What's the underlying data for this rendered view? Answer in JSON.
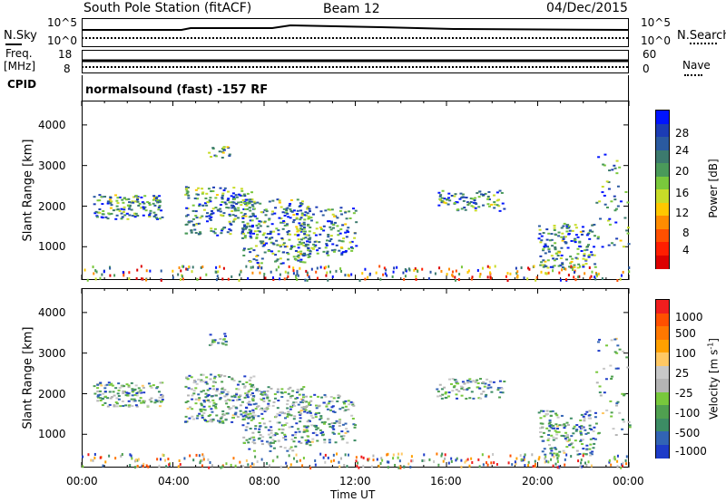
{
  "header": {
    "station": "South Pole Station (fitACF)",
    "beam": "Beam 12",
    "date": "04/Dec/2015"
  },
  "top_panels": {
    "nsky_label": "N.Sky",
    "nsky_left_ticks": [
      "10^5",
      "10^0"
    ],
    "nsky_right_ticks": [
      "10^5",
      "10^0"
    ],
    "nsearch_label": "N.Search",
    "freq_label_1": "Freq.",
    "freq_label_2": "[MHz]",
    "freq_left_ticks": [
      "18",
      "8"
    ],
    "freq_right_ticks": [
      "60",
      "0"
    ],
    "nave_label": "Nave",
    "cpid_label": "CPID",
    "cpid_text": "normalsound (fast) -157 RF"
  },
  "chart_data": [
    {
      "type": "heatmap",
      "panel": "power",
      "ylabel": "Slant Range [km]",
      "y_ticks": [
        1000,
        2000,
        3000,
        4000
      ],
      "ylim": [
        180,
        4600
      ],
      "xlim": [
        0,
        24
      ],
      "colorbar": {
        "label": "Power [dB]",
        "ticks": [
          "28",
          "24",
          "20",
          "16",
          "12",
          "8",
          "4"
        ],
        "colors": [
          "#0014ff",
          "#1c3cb4",
          "#2a5aa0",
          "#3c7a6e",
          "#4a9a5a",
          "#7ac83c",
          "#c8dc28",
          "#ffc800",
          "#ff8c00",
          "#ff5000",
          "#ff1e00",
          "#dc0000"
        ]
      }
    },
    {
      "type": "heatmap",
      "panel": "velocity",
      "ylabel": "Slant Range [km]",
      "y_ticks": [
        1000,
        2000,
        3000,
        4000
      ],
      "ylim": [
        180,
        4600
      ],
      "xlim": [
        0,
        24
      ],
      "xlabel": "Time UT",
      "x_ticks": [
        "00:00",
        "04:00",
        "08:00",
        "12:00",
        "16:00",
        "20:00",
        "00:00"
      ],
      "colorbar": {
        "label": "Velocity [m s",
        "label_sup": "-1",
        "label_end": "]",
        "ticks": [
          "1000",
          "500",
          "100",
          "25",
          "-25",
          "-100",
          "-500",
          "-1000"
        ],
        "colors": [
          "#1e3cc8",
          "#3264b4",
          "#3c8c64",
          "#50a050",
          "#78c83c",
          "#b4b4b4",
          "#c8c8c8",
          "#ffc864",
          "#ffa000",
          "#ff7800",
          "#ff5000",
          "#f01e1e"
        ]
      }
    }
  ]
}
